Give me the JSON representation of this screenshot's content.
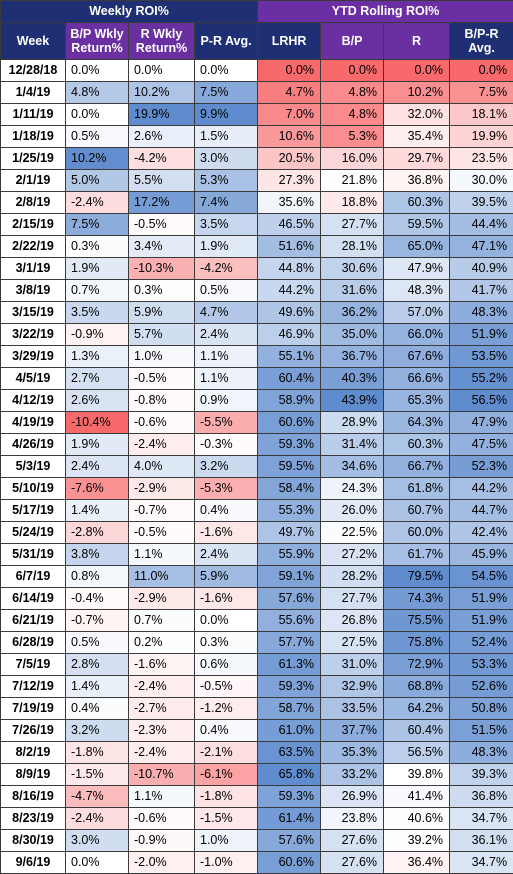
{
  "groups": {
    "weekly": "Weekly ROI%",
    "ytd": "YTD Rolling ROI%"
  },
  "headers": {
    "week": "Week",
    "bp_wkly": [
      "B/P Wkly",
      "Return%"
    ],
    "r_wkly": [
      "R Wkly",
      "Return%"
    ],
    "pr_avg": "P-R Avg.",
    "lrhr": "LRHR",
    "bp": "B/P",
    "r": "R",
    "bpr_avg": [
      "B/P-R",
      "Avg."
    ]
  },
  "rows": [
    [
      "12/28/18",
      "0.0%",
      "0.0%",
      "0.0%",
      "0.0%",
      "0.0%",
      "0.0%",
      "0.0%"
    ],
    [
      "1/4/19",
      "4.8%",
      "10.2%",
      "7.5%",
      "4.7%",
      "4.8%",
      "10.2%",
      "7.5%"
    ],
    [
      "1/11/19",
      "0.0%",
      "19.9%",
      "9.9%",
      "7.0%",
      "4.8%",
      "32.0%",
      "18.1%"
    ],
    [
      "1/18/19",
      "0.5%",
      "2.6%",
      "1.5%",
      "10.6%",
      "5.3%",
      "35.4%",
      "19.9%"
    ],
    [
      "1/25/19",
      "10.2%",
      "-4.2%",
      "3.0%",
      "20.5%",
      "16.0%",
      "29.7%",
      "23.5%"
    ],
    [
      "2/1/19",
      "5.0%",
      "5.5%",
      "5.3%",
      "27.3%",
      "21.8%",
      "36.8%",
      "30.0%"
    ],
    [
      "2/8/19",
      "-2.4%",
      "17.2%",
      "7.4%",
      "35.6%",
      "18.8%",
      "60.3%",
      "39.5%"
    ],
    [
      "2/15/19",
      "7.5%",
      "-0.5%",
      "3.5%",
      "46.5%",
      "27.7%",
      "59.5%",
      "44.4%"
    ],
    [
      "2/22/19",
      "0.3%",
      "3.4%",
      "1.9%",
      "51.6%",
      "28.1%",
      "65.0%",
      "47.1%"
    ],
    [
      "3/1/19",
      "1.9%",
      "-10.3%",
      "-4.2%",
      "44.8%",
      "30.6%",
      "47.9%",
      "40.9%"
    ],
    [
      "3/8/19",
      "0.7%",
      "0.3%",
      "0.5%",
      "44.2%",
      "31.6%",
      "48.3%",
      "41.7%"
    ],
    [
      "3/15/19",
      "3.5%",
      "5.9%",
      "4.7%",
      "49.6%",
      "36.2%",
      "57.0%",
      "48.3%"
    ],
    [
      "3/22/19",
      "-0.9%",
      "5.7%",
      "2.4%",
      "46.9%",
      "35.0%",
      "66.0%",
      "51.9%"
    ],
    [
      "3/29/19",
      "1.3%",
      "1.0%",
      "1.1%",
      "55.1%",
      "36.7%",
      "67.6%",
      "53.5%"
    ],
    [
      "4/5/19",
      "2.7%",
      "-0.5%",
      "1.1%",
      "60.4%",
      "40.3%",
      "66.6%",
      "55.2%"
    ],
    [
      "4/12/19",
      "2.6%",
      "-0.8%",
      "0.9%",
      "58.9%",
      "43.9%",
      "65.3%",
      "56.5%"
    ],
    [
      "4/19/19",
      "-10.4%",
      "-0.6%",
      "-5.5%",
      "60.6%",
      "28.9%",
      "64.3%",
      "47.9%"
    ],
    [
      "4/26/19",
      "1.9%",
      "-2.4%",
      "-0.3%",
      "59.3%",
      "31.4%",
      "60.3%",
      "47.5%"
    ],
    [
      "5/3/19",
      "2.4%",
      "4.0%",
      "3.2%",
      "59.5%",
      "34.6%",
      "66.7%",
      "52.3%"
    ],
    [
      "5/10/19",
      "-7.6%",
      "-2.9%",
      "-5.3%",
      "58.4%",
      "24.3%",
      "61.8%",
      "44.2%"
    ],
    [
      "5/17/19",
      "1.4%",
      "-0.7%",
      "0.4%",
      "55.3%",
      "26.0%",
      "60.7%",
      "44.7%"
    ],
    [
      "5/24/19",
      "-2.8%",
      "-0.5%",
      "-1.6%",
      "49.7%",
      "22.5%",
      "60.0%",
      "42.4%"
    ],
    [
      "5/31/19",
      "3.8%",
      "1.1%",
      "2.4%",
      "55.9%",
      "27.2%",
      "61.7%",
      "45.9%"
    ],
    [
      "6/7/19",
      "0.8%",
      "11.0%",
      "5.9%",
      "59.1%",
      "28.2%",
      "79.5%",
      "54.5%"
    ],
    [
      "6/14/19",
      "-0.4%",
      "-2.9%",
      "-1.6%",
      "57.6%",
      "27.7%",
      "74.3%",
      "51.9%"
    ],
    [
      "6/21/19",
      "-0.7%",
      "0.7%",
      "0.0%",
      "55.6%",
      "26.8%",
      "75.5%",
      "51.9%"
    ],
    [
      "6/28/19",
      "0.5%",
      "0.2%",
      "0.3%",
      "57.7%",
      "27.5%",
      "75.8%",
      "52.4%"
    ],
    [
      "7/5/19",
      "2.8%",
      "-1.6%",
      "0.6%",
      "61.3%",
      "31.0%",
      "72.9%",
      "53.3%"
    ],
    [
      "7/12/19",
      "1.4%",
      "-2.4%",
      "-0.5%",
      "59.3%",
      "32.9%",
      "68.8%",
      "52.6%"
    ],
    [
      "7/19/19",
      "0.4%",
      "-2.7%",
      "-1.2%",
      "58.7%",
      "33.5%",
      "64.2%",
      "50.8%"
    ],
    [
      "7/26/19",
      "3.2%",
      "-2.3%",
      "0.4%",
      "61.0%",
      "37.7%",
      "60.4%",
      "51.5%"
    ],
    [
      "8/2/19",
      "-1.8%",
      "-2.4%",
      "-2.1%",
      "63.5%",
      "35.3%",
      "56.5%",
      "48.3%"
    ],
    [
      "8/9/19",
      "-1.5%",
      "-10.7%",
      "-6.1%",
      "65.8%",
      "33.2%",
      "39.8%",
      "39.3%"
    ],
    [
      "8/16/19",
      "-4.7%",
      "1.1%",
      "-1.8%",
      "59.3%",
      "26.9%",
      "41.4%",
      "36.8%"
    ],
    [
      "8/23/19",
      "-2.4%",
      "-0.6%",
      "-1.5%",
      "61.4%",
      "23.8%",
      "40.6%",
      "34.7%"
    ],
    [
      "8/30/19",
      "3.0%",
      "-0.9%",
      "1.0%",
      "57.6%",
      "27.6%",
      "39.2%",
      "36.1%"
    ],
    [
      "9/6/19",
      "0.0%",
      "-2.0%",
      "-1.0%",
      "60.6%",
      "27.6%",
      "36.4%",
      "34.7%"
    ]
  ]
}
